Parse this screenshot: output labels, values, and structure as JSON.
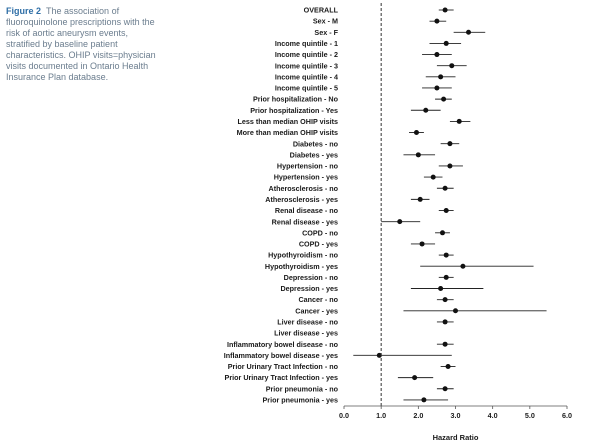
{
  "caption": {
    "figure_label": "Figure 2",
    "text": "The association of fluoroquinolone prescriptions with the risk of aortic aneurysm events, stratified by baseline patient characteristics. OHIP visits=physician visits documented in Ontario Health Insurance Plan database."
  },
  "chart_data": {
    "type": "forest",
    "xlabel": "Hazard Ratio",
    "xlim": [
      0,
      6
    ],
    "xticks": [
      "0.0",
      "1.0",
      "2.0",
      "3.0",
      "4.0",
      "5.0",
      "6.0"
    ],
    "reference_line": 1.0,
    "colors": {
      "point": "#111111",
      "line": "#222222",
      "reference": "#333333"
    },
    "rows": [
      {
        "label": "OVERALL",
        "hr": 2.72,
        "lo": 2.55,
        "hi": 2.95
      },
      {
        "label": "Sex - M",
        "hr": 2.5,
        "lo": 2.3,
        "hi": 2.75
      },
      {
        "label": "Sex - F",
        "hr": 3.35,
        "lo": 2.95,
        "hi": 3.8
      },
      {
        "label": "Income quintile - 1",
        "hr": 2.75,
        "lo": 2.3,
        "hi": 3.15
      },
      {
        "label": "Income quintile - 2",
        "hr": 2.5,
        "lo": 2.1,
        "hi": 2.9
      },
      {
        "label": "Income quintile - 3",
        "hr": 2.9,
        "lo": 2.5,
        "hi": 3.3
      },
      {
        "label": "Income quintile - 4",
        "hr": 2.6,
        "lo": 2.2,
        "hi": 3.0
      },
      {
        "label": "Income quintile - 5",
        "hr": 2.5,
        "lo": 2.1,
        "hi": 2.9
      },
      {
        "label": "Prior hospitalization - No",
        "hr": 2.68,
        "lo": 2.45,
        "hi": 2.9
      },
      {
        "label": "Prior hospitalization - Yes",
        "hr": 2.2,
        "lo": 1.8,
        "hi": 2.6
      },
      {
        "label": "Less than median OHIP visits",
        "hr": 3.1,
        "lo": 2.85,
        "hi": 3.4
      },
      {
        "label": "More than median OHIP visits",
        "hr": 1.95,
        "lo": 1.75,
        "hi": 2.15
      },
      {
        "label": "Diabetes - no",
        "hr": 2.85,
        "lo": 2.6,
        "hi": 3.1
      },
      {
        "label": "Diabetes - yes",
        "hr": 2.0,
        "lo": 1.6,
        "hi": 2.45
      },
      {
        "label": "Hypertension - no",
        "hr": 2.85,
        "lo": 2.55,
        "hi": 3.2
      },
      {
        "label": "Hypertension - yes",
        "hr": 2.4,
        "lo": 2.15,
        "hi": 2.65
      },
      {
        "label": "Atherosclerosis - no",
        "hr": 2.72,
        "lo": 2.5,
        "hi": 2.95
      },
      {
        "label": "Atherosclerosis - yes",
        "hr": 2.05,
        "lo": 1.8,
        "hi": 2.3
      },
      {
        "label": "Renal disease - no",
        "hr": 2.75,
        "lo": 2.55,
        "hi": 2.95
      },
      {
        "label": "Renal disease - yes",
        "hr": 1.5,
        "lo": 1.0,
        "hi": 2.05
      },
      {
        "label": "COPD - no",
        "hr": 2.65,
        "lo": 2.45,
        "hi": 2.85
      },
      {
        "label": "COPD - yes",
        "hr": 2.1,
        "lo": 1.8,
        "hi": 2.45
      },
      {
        "label": "Hypothyroidism - no",
        "hr": 2.75,
        "lo": 2.55,
        "hi": 2.95
      },
      {
        "label": "Hypothyroidism - yes",
        "hr": 3.2,
        "lo": 2.05,
        "hi": 5.1
      },
      {
        "label": "Depression - no",
        "hr": 2.75,
        "lo": 2.55,
        "hi": 2.95
      },
      {
        "label": "Depression - yes",
        "hr": 2.6,
        "lo": 1.8,
        "hi": 3.75
      },
      {
        "label": "Cancer - no",
        "hr": 2.72,
        "lo": 2.5,
        "hi": 2.95
      },
      {
        "label": "Cancer - yes",
        "hr": 3.0,
        "lo": 1.6,
        "hi": 5.45
      },
      {
        "label": "Liver disease - no",
        "hr": 2.72,
        "lo": 2.5,
        "hi": 2.95
      },
      {
        "label": "Liver disease - yes",
        "hr": null,
        "lo": null,
        "hi": null
      },
      {
        "label": "Inflammatory bowel disease - no",
        "hr": 2.72,
        "lo": 2.5,
        "hi": 2.95
      },
      {
        "label": "Inflammatory bowel disease - yes",
        "hr": 0.95,
        "lo": 0.25,
        "hi": 2.9
      },
      {
        "label": "Prior Urinary Tract Infection - no",
        "hr": 2.8,
        "lo": 2.6,
        "hi": 3.0
      },
      {
        "label": "Prior Urinary Tract Infection - yes",
        "hr": 1.9,
        "lo": 1.45,
        "hi": 2.4
      },
      {
        "label": "Prior pneumonia - no",
        "hr": 2.72,
        "lo": 2.5,
        "hi": 2.95
      },
      {
        "label": "Prior pneumonia - yes",
        "hr": 2.15,
        "lo": 1.6,
        "hi": 2.8
      }
    ]
  }
}
